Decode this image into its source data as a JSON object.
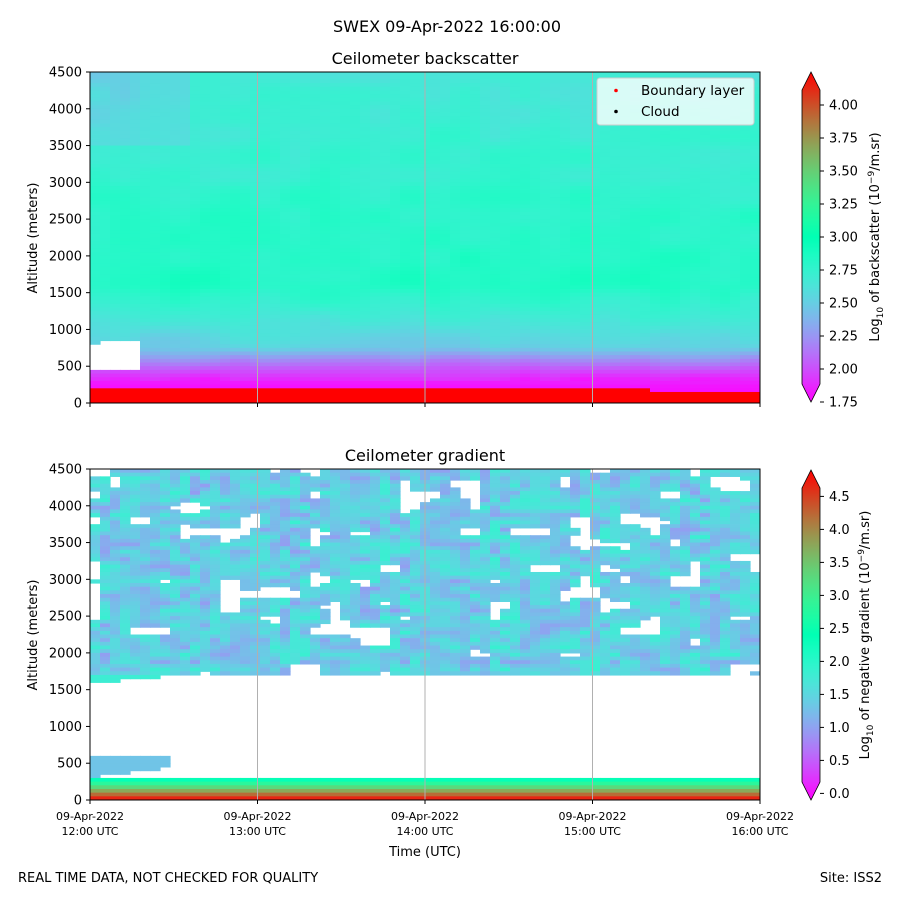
{
  "figure": {
    "suptitle": "SWEX 09-Apr-2022 16:00:00",
    "footer_left": "REAL TIME DATA, NOT CHECKED FOR QUALITY",
    "footer_right": "Site: ISS2"
  },
  "chart_data": [
    {
      "type": "heatmap",
      "title": "Ceilometer backscatter",
      "ylabel": "Altitude (meters)",
      "xlabel": "",
      "ylim": [
        0,
        4500
      ],
      "yticks": [
        0,
        500,
        1000,
        1500,
        2000,
        2500,
        3000,
        3500,
        4000,
        4500
      ],
      "xlim_hours": [
        12,
        16
      ],
      "x_gridlines_hours": [
        13,
        14,
        15
      ],
      "colorbar": {
        "label_main": "Log",
        "label_sub": "10",
        "label_rest": " of backscatter (10",
        "label_sup": "−9",
        "label_end": "/m.sr)",
        "range": [
          1.75,
          4.25
        ],
        "ticks": [
          1.75,
          2.0,
          2.25,
          2.5,
          2.75,
          3.0,
          3.25,
          3.5,
          3.75,
          4.0
        ],
        "tick_labels": [
          "1.75",
          "2.00",
          "2.25",
          "2.50",
          "2.75",
          "3.00",
          "3.25",
          "3.50",
          "3.75",
          "4.00"
        ]
      },
      "legend": {
        "placement": "upper-right",
        "entries": [
          {
            "label": "Boundary layer",
            "color": "#ff0000"
          },
          {
            "label": "Cloud",
            "color": "#000000"
          }
        ]
      },
      "field": {
        "surface_layer_top_m": 200,
        "low_minimum_layer_m": [
          250,
          750
        ],
        "minimum_value": 1.8,
        "mid_maximum_value": 2.85,
        "upper_value": 2.65,
        "no_data_region_hours": [
          12.0,
          12.3
        ],
        "no_data_region_m": [
          450,
          850
        ]
      }
    },
    {
      "type": "heatmap",
      "title": "Ceilometer gradient",
      "ylabel": "Altitude (meters)",
      "xlabel": "Time (UTC)",
      "ylim": [
        0,
        4500
      ],
      "yticks": [
        0,
        500,
        1000,
        1500,
        2000,
        2500,
        3000,
        3500,
        4000,
        4500
      ],
      "xlim_hours": [
        12,
        16
      ],
      "x_gridlines_hours": [
        13,
        14,
        15
      ],
      "xticks": [
        {
          "hour": 12,
          "line1": "09-Apr-2022",
          "line2": "12:00 UTC"
        },
        {
          "hour": 13,
          "line1": "09-Apr-2022",
          "line2": "13:00 UTC"
        },
        {
          "hour": 14,
          "line1": "09-Apr-2022",
          "line2": "14:00 UTC"
        },
        {
          "hour": 15,
          "line1": "09-Apr-2022",
          "line2": "15:00 UTC"
        },
        {
          "hour": 16,
          "line1": "09-Apr-2022",
          "line2": "16:00 UTC"
        }
      ],
      "colorbar": {
        "label_main": "Log",
        "label_sub": "10",
        "label_rest": " of negative gradient (10",
        "label_sup": "−9",
        "label_end": "/m.sr)",
        "range": [
          -0.1,
          4.9
        ],
        "ticks": [
          0,
          0.5,
          1.0,
          1.5,
          2.0,
          2.5,
          3.0,
          3.5,
          4.0,
          4.5
        ],
        "tick_labels": [
          "0.0",
          "0.5",
          "1.0",
          "1.5",
          "2.0",
          "2.5",
          "3.0",
          "3.5",
          "4.0",
          "4.5"
        ]
      },
      "field": {
        "surface_band_top_m": 280,
        "background_value": 1.4,
        "empty_gap_m": [
          650,
          1700
        ],
        "low_band_m": [
          300,
          600
        ]
      }
    }
  ]
}
